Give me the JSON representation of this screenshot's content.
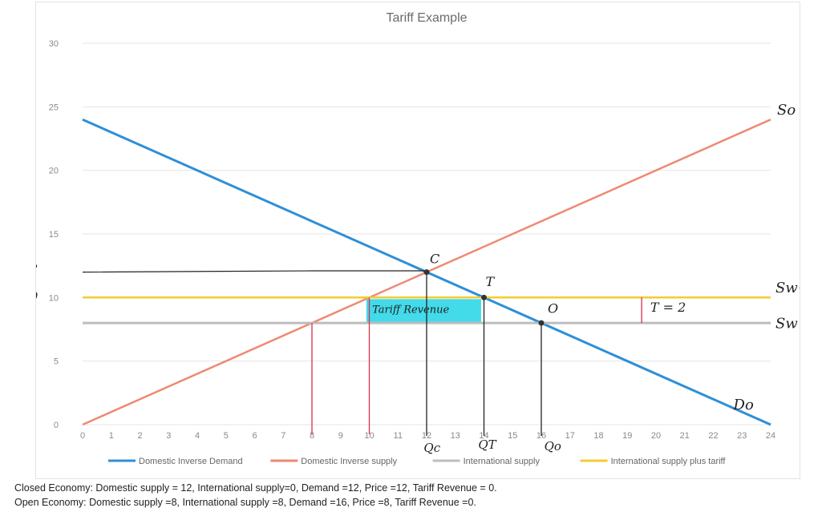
{
  "chart_data": {
    "type": "line",
    "title": "Tariff Example",
    "xlim": [
      0,
      24
    ],
    "ylim": [
      0,
      30
    ],
    "x_ticks": [
      "0",
      "1",
      "2",
      "3",
      "4",
      "5",
      "6",
      "7",
      "8",
      "9",
      "10",
      "11",
      "12",
      "13",
      "14",
      "15",
      "16",
      "17",
      "18",
      "19",
      "20",
      "21",
      "22",
      "23",
      "24"
    ],
    "y_ticks": [
      "0",
      "5",
      "10",
      "15",
      "20",
      "25",
      "30"
    ],
    "grid": true,
    "legend_position": "bottom",
    "series": [
      {
        "name": "Domestic Inverse Demand",
        "color": "#2e8fd6",
        "points": [
          [
            0,
            24
          ],
          [
            24,
            0
          ]
        ]
      },
      {
        "name": "Domestic Inverse supply",
        "color": "#ee8a73",
        "points": [
          [
            0,
            0
          ],
          [
            24,
            24
          ]
        ]
      },
      {
        "name": "International supply",
        "color": "#bdbdbd",
        "points": [
          [
            0,
            8
          ],
          [
            24,
            8
          ]
        ]
      },
      {
        "name": "International supply plus tariff",
        "color": "#f2cc30",
        "points": [
          [
            0,
            10
          ],
          [
            24,
            10
          ]
        ]
      }
    ],
    "annotations": {
      "curve_labels": {
        "supply": "So",
        "demand": "Do",
        "world": "Sw",
        "world_tariff": "Sw+T"
      },
      "price_labels": [
        {
          "symbol": "Pᶜ",
          "value": "12"
        },
        {
          "symbol": "Pᵀ",
          "value": "10"
        },
        {
          "symbol": "Pᵒ",
          "value": "8"
        }
      ],
      "point_labels": {
        "closed": "C",
        "tariff": "T",
        "open": "O"
      },
      "quantity_labels": {
        "closed": "Qc",
        "tariff": "QT",
        "open": "Qo"
      },
      "tariff_label": "T = 2",
      "tariff_revenue_label": "Tariff Revenue",
      "tariff_revenue_box": {
        "x_from": 9.9,
        "x_to": 13.9,
        "y_from": 8,
        "y_to": 10
      },
      "red_guides_x": [
        8,
        10
      ],
      "black_guides_x": [
        12,
        14,
        16
      ],
      "tariff_marker_x": 19.5
    }
  },
  "captions": {
    "closed": "Closed Economy:  Domestic supply = 12, International supply=0, Demand =12, Price =12, Tariff Revenue = 0.",
    "open": "Open Economy:  Domestic supply =8, International supply =8, Demand =16, Price =8, Tariff Revenue =0."
  }
}
